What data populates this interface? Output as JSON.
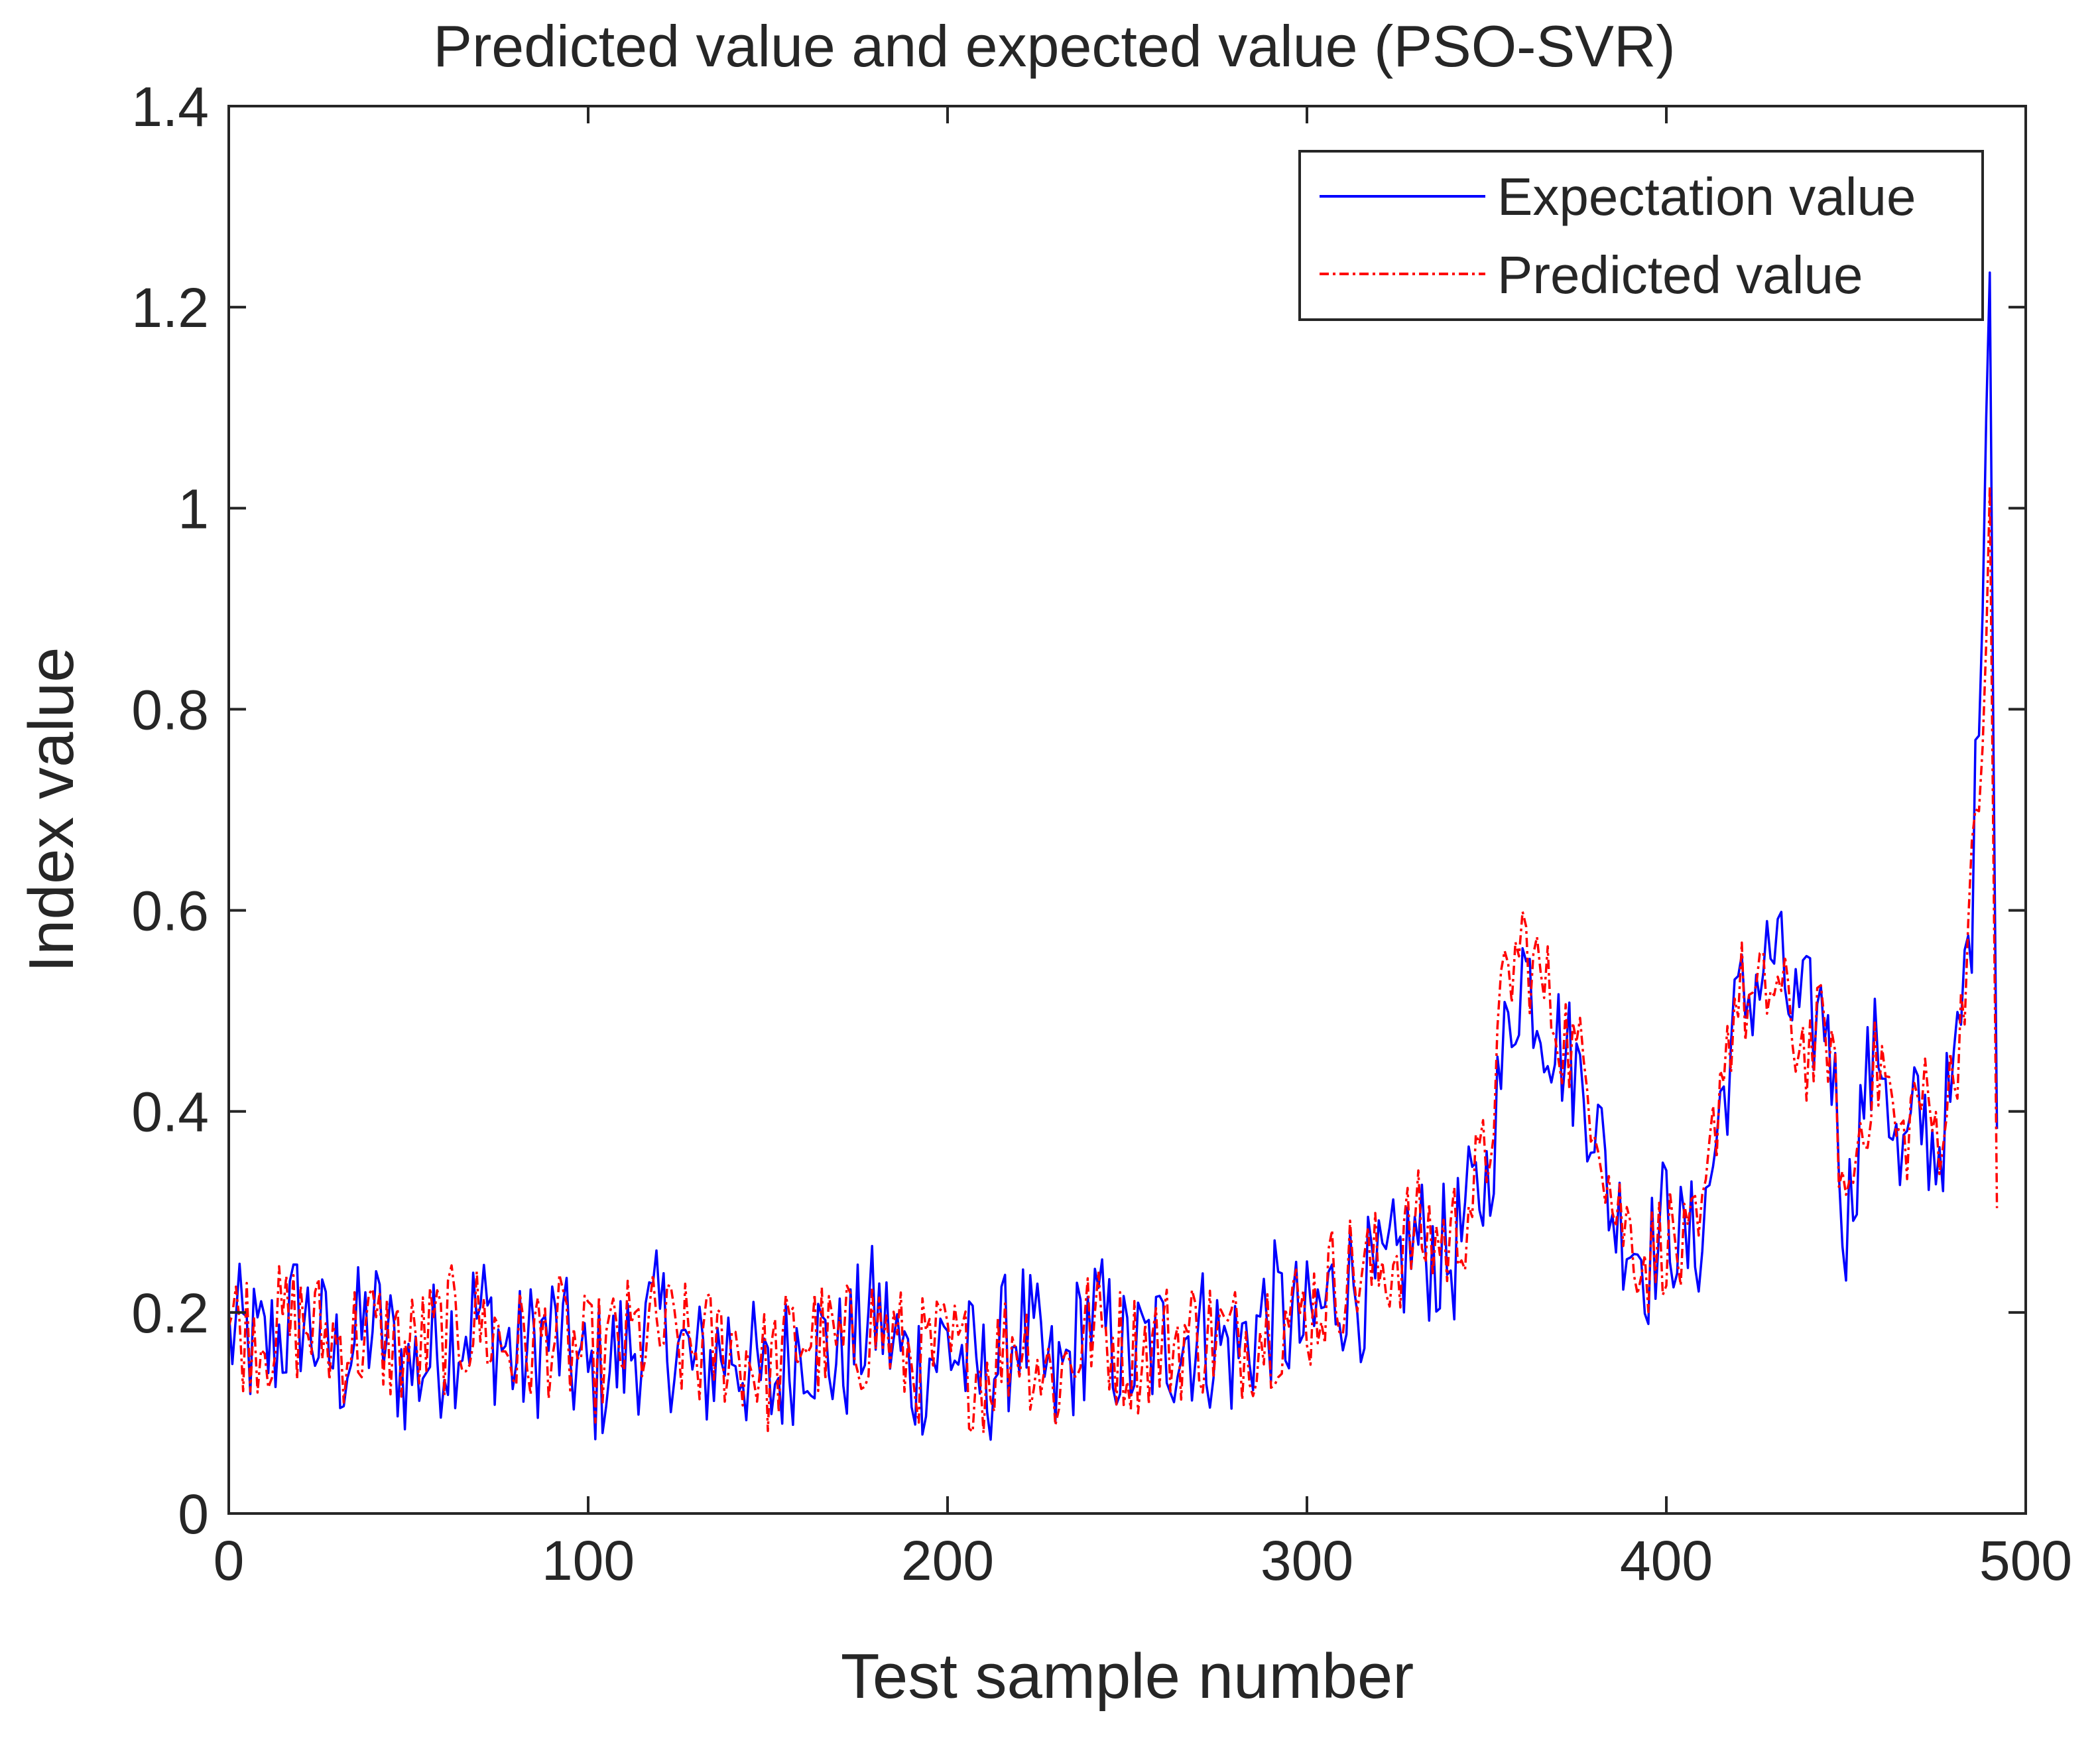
{
  "chart_data": {
    "type": "line",
    "title": "Predicted value and expected value (PSO-SVR)",
    "xlabel": "Test sample number",
    "ylabel": "Index value",
    "xlim": [
      0,
      500
    ],
    "ylim": [
      0,
      1.4
    ],
    "xticks": [
      "0",
      "100",
      "200",
      "300",
      "400",
      "500"
    ],
    "yticks": [
      "0",
      "0.2",
      "0.4",
      "0.6",
      "0.8",
      "1",
      "1.2",
      "1.4"
    ],
    "grid": false,
    "legend_position": "top-right",
    "series": [
      {
        "name": "Expectation value",
        "color": "#0000ff",
        "style": "solid"
      },
      {
        "name": "Predicted value",
        "color": "#ff0000",
        "style": "dash-dot"
      }
    ],
    "x": [
      0,
      10,
      20,
      30,
      40,
      50,
      60,
      70,
      80,
      90,
      100,
      110,
      120,
      130,
      140,
      150,
      160,
      170,
      180,
      190,
      200,
      210,
      220,
      230,
      240,
      250,
      260,
      270,
      280,
      290,
      300,
      310,
      320,
      330,
      340,
      345,
      350,
      355,
      360,
      365,
      370,
      375,
      380,
      385,
      390,
      395,
      400,
      405,
      410,
      415,
      420,
      425,
      430,
      435,
      440,
      445,
      450,
      455,
      460,
      465,
      470,
      475,
      480,
      485,
      487,
      490,
      492
    ],
    "expectation": [
      0.18,
      0.16,
      0.2,
      0.15,
      0.19,
      0.14,
      0.17,
      0.2,
      0.15,
      0.18,
      0.13,
      0.16,
      0.19,
      0.14,
      0.17,
      0.12,
      0.18,
      0.15,
      0.2,
      0.14,
      0.17,
      0.13,
      0.19,
      0.12,
      0.2,
      0.15,
      0.17,
      0.18,
      0.16,
      0.2,
      0.18,
      0.23,
      0.22,
      0.27,
      0.25,
      0.3,
      0.33,
      0.46,
      0.55,
      0.5,
      0.47,
      0.44,
      0.4,
      0.3,
      0.28,
      0.25,
      0.3,
      0.26,
      0.28,
      0.4,
      0.5,
      0.53,
      0.56,
      0.5,
      0.49,
      0.5,
      0.28,
      0.42,
      0.47,
      0.33,
      0.4,
      0.36,
      0.42,
      0.6,
      0.82,
      1.25,
      0.4
    ],
    "predicted": [
      0.19,
      0.18,
      0.19,
      0.17,
      0.18,
      0.16,
      0.18,
      0.19,
      0.16,
      0.18,
      0.15,
      0.17,
      0.18,
      0.16,
      0.17,
      0.14,
      0.18,
      0.16,
      0.19,
      0.15,
      0.16,
      0.14,
      0.18,
      0.13,
      0.19,
      0.16,
      0.17,
      0.18,
      0.17,
      0.19,
      0.2,
      0.24,
      0.24,
      0.28,
      0.27,
      0.31,
      0.35,
      0.52,
      0.57,
      0.53,
      0.49,
      0.45,
      0.42,
      0.31,
      0.28,
      0.25,
      0.28,
      0.25,
      0.27,
      0.44,
      0.52,
      0.5,
      0.53,
      0.48,
      0.46,
      0.48,
      0.3,
      0.41,
      0.45,
      0.36,
      0.42,
      0.38,
      0.43,
      0.62,
      0.7,
      0.98,
      0.3
    ]
  }
}
